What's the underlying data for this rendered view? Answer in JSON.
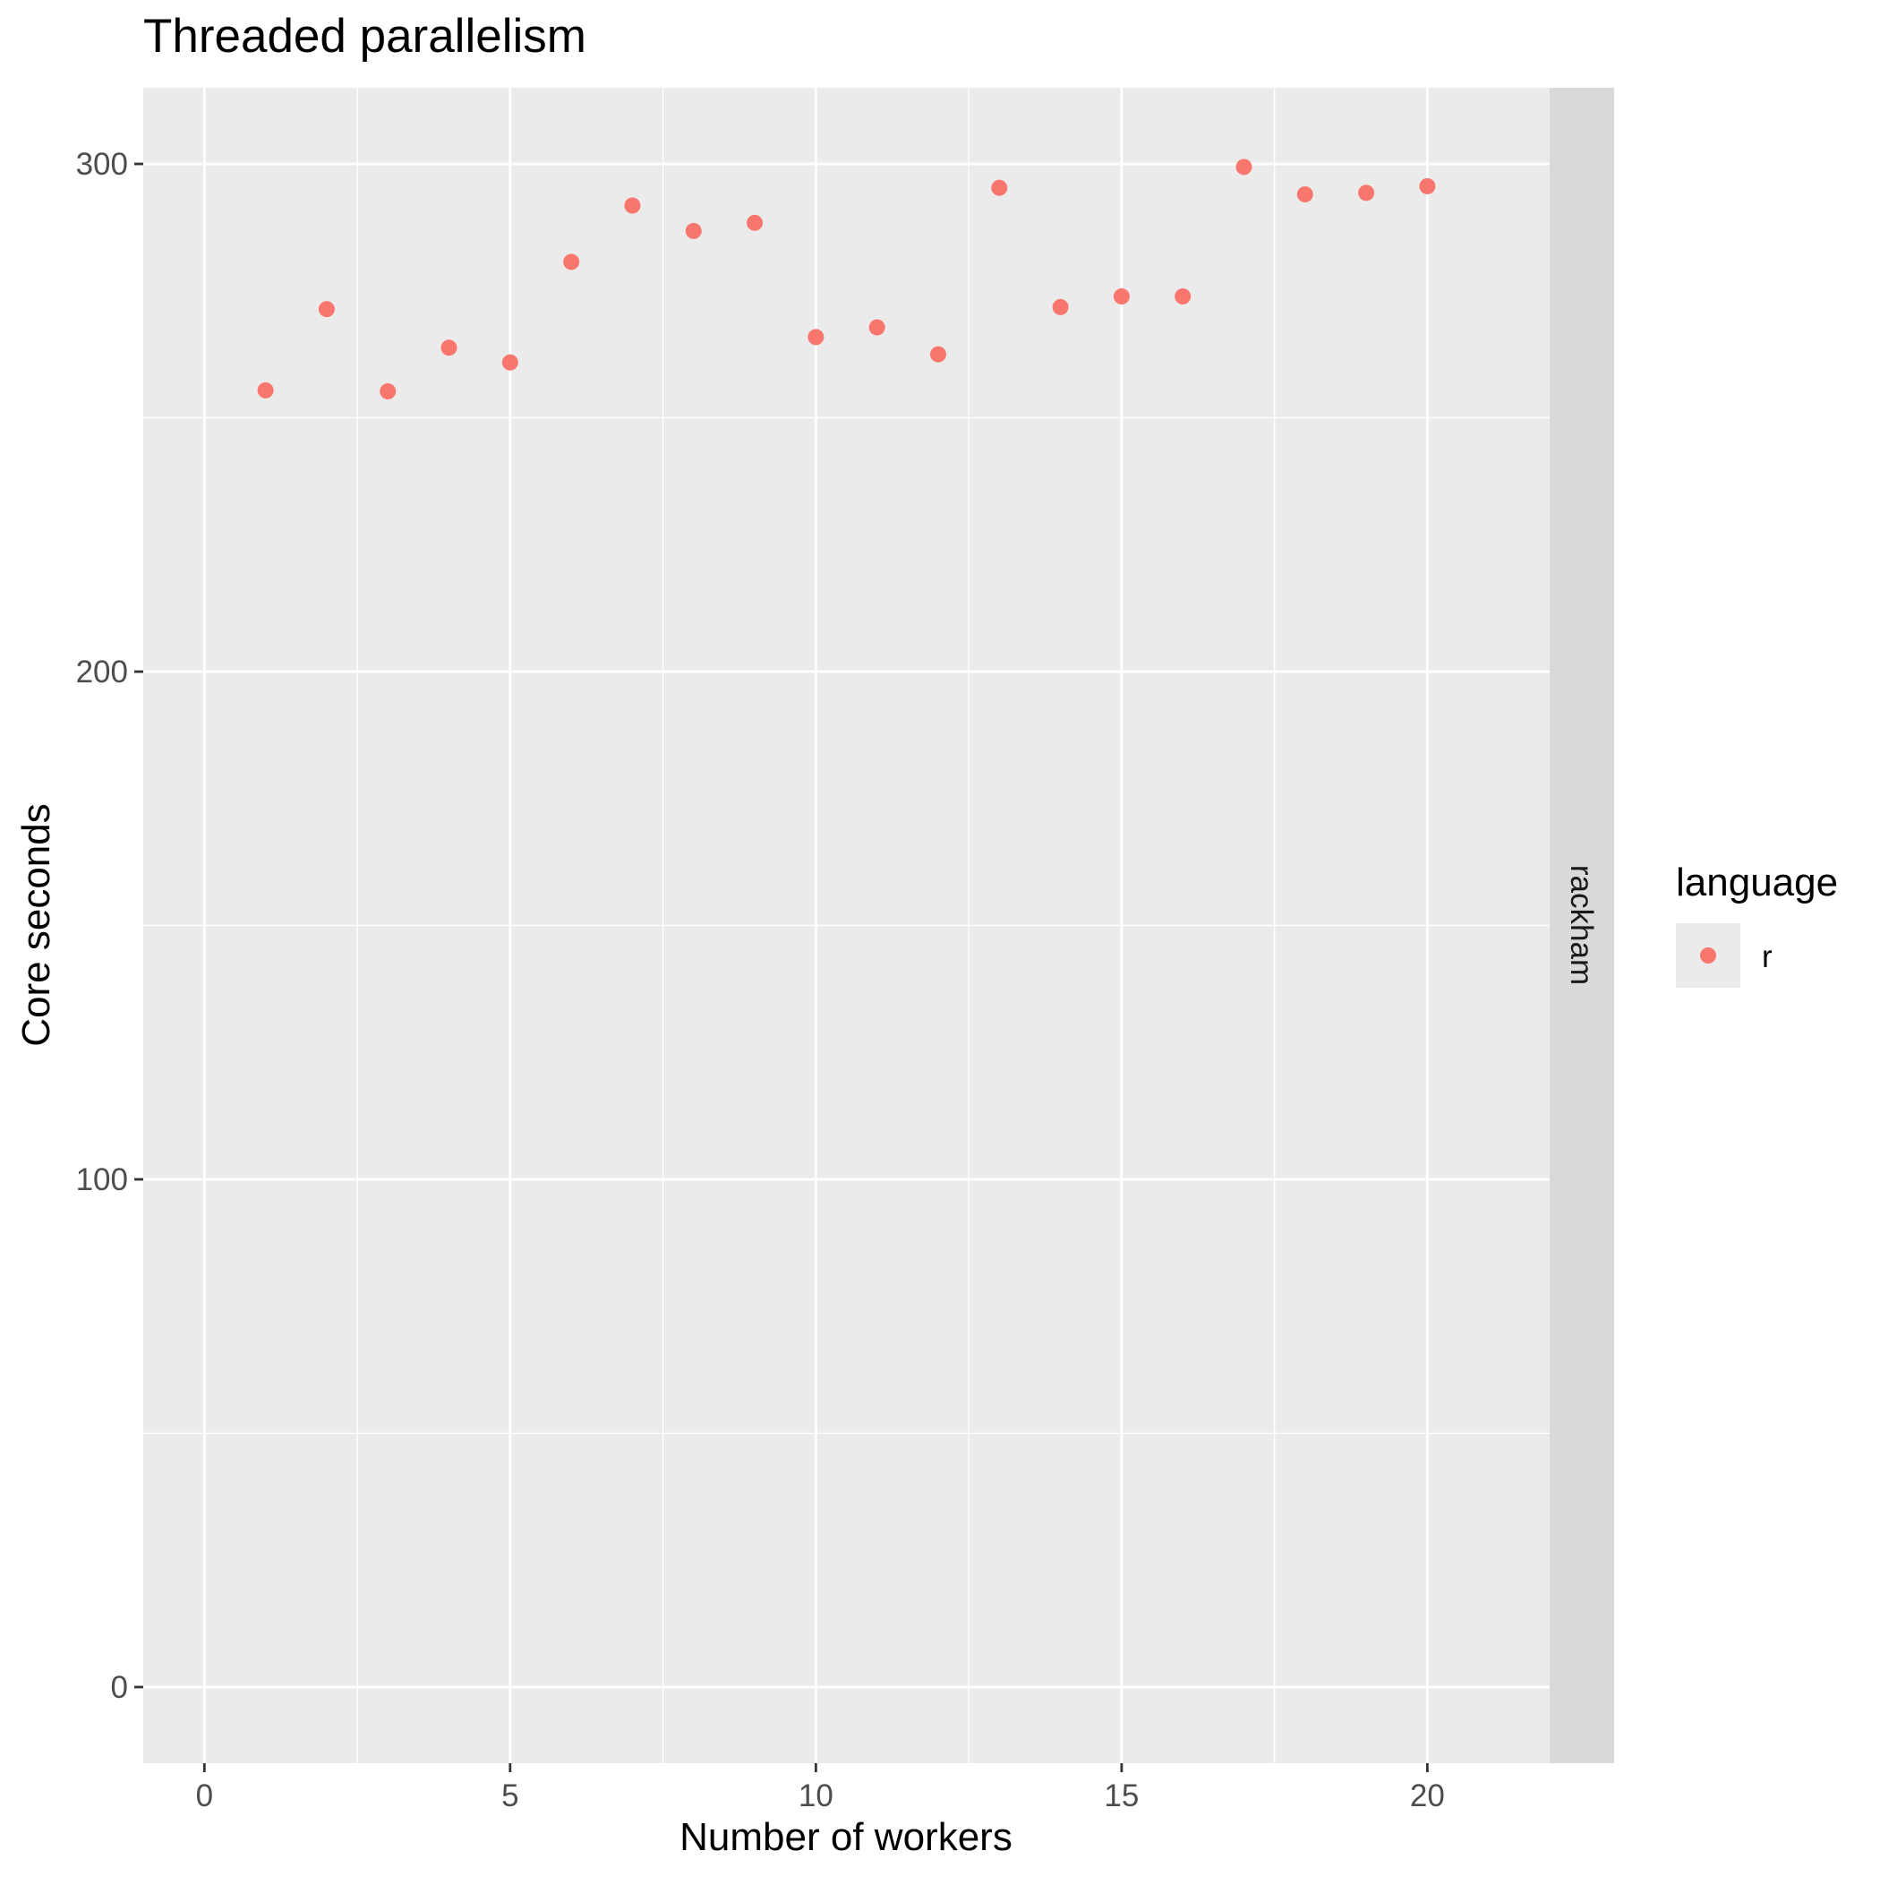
{
  "chart_data": {
    "type": "scatter",
    "title": "Threaded parallelism",
    "xlabel": "Number of workers",
    "ylabel": "Core seconds",
    "facet_label": "rackham",
    "xlim": [
      -1,
      22
    ],
    "ylim": [
      -15,
      315
    ],
    "x_ticks": [
      0,
      5,
      10,
      15,
      20
    ],
    "y_ticks": [
      0,
      100,
      200,
      300
    ],
    "x_tick_labels": [
      "0",
      "5",
      "10",
      "15",
      "20"
    ],
    "y_tick_labels": [
      "0",
      "100",
      "200",
      "300"
    ],
    "grid": true,
    "legend": {
      "title": "language",
      "placement": "right"
    },
    "series": [
      {
        "name": "r",
        "color": "#F8766D",
        "x": [
          1,
          2,
          3,
          4,
          5,
          6,
          7,
          8,
          9,
          10,
          11,
          12,
          13,
          14,
          15,
          16,
          17,
          18,
          19,
          20
        ],
        "y": [
          255.4,
          271.4,
          255.2,
          263.8,
          260.9,
          280.7,
          291.8,
          286.8,
          288.4,
          265.9,
          267.8,
          262.5,
          295.3,
          271.8,
          273.9,
          273.9,
          299.4,
          294.0,
          294.3,
          295.6
        ]
      }
    ]
  }
}
